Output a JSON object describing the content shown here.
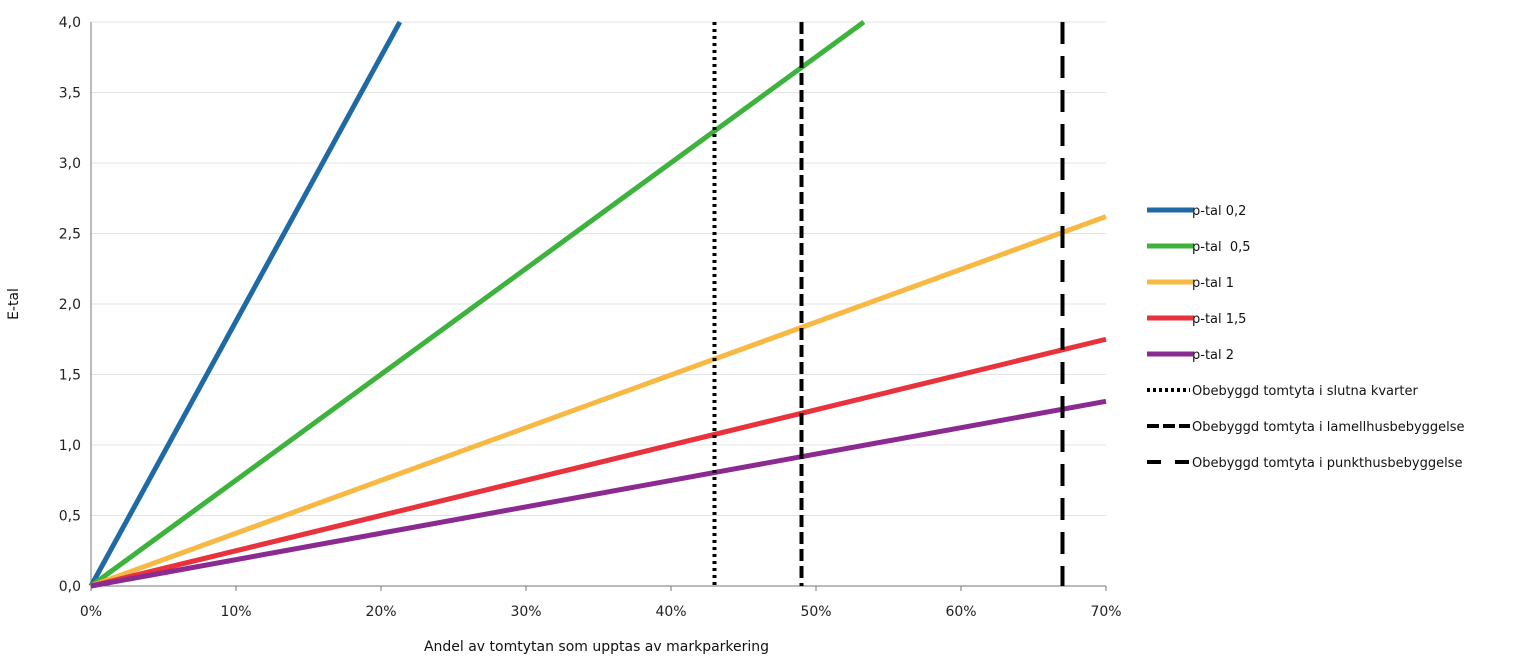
{
  "chart_data": {
    "type": "line",
    "title": "",
    "xlabel": "Andel av tomtytan som upptas av markparkering",
    "ylabel": "E-tal",
    "xlim": [
      0,
      0.7
    ],
    "ylim": [
      0,
      4.0
    ],
    "x_ticks": [
      0,
      0.1,
      0.2,
      0.3,
      0.4,
      0.5,
      0.6,
      0.7
    ],
    "x_tick_labels": [
      "0%",
      "10%",
      "20%",
      "30%",
      "40%",
      "50%",
      "60%",
      "70%"
    ],
    "y_ticks": [
      0,
      0.5,
      1.0,
      1.5,
      2.0,
      2.5,
      3.0,
      3.5,
      4.0
    ],
    "y_tick_labels": [
      "0,0",
      "0,5",
      "1,0",
      "1,5",
      "2,0",
      "2,5",
      "3,0",
      "3,5",
      "4,0"
    ],
    "grid": "horizontal",
    "legend_position": "right",
    "series": [
      {
        "name": "p-tal 0,2",
        "color": "#1f6aa5",
        "x": [
          0,
          0.213
        ],
        "y": [
          0,
          4.0
        ]
      },
      {
        "name": "p-tal  0,5",
        "color": "#3db33d",
        "x": [
          0,
          0.533
        ],
        "y": [
          0,
          4.0
        ]
      },
      {
        "name": "p-tal 1",
        "color": "#f7b844",
        "x": [
          0,
          0.7
        ],
        "y": [
          0,
          2.62
        ]
      },
      {
        "name": "p-tal 1,5",
        "color": "#e8323c",
        "x": [
          0,
          0.7
        ],
        "y": [
          0,
          1.75
        ]
      },
      {
        "name": "p-tal 2",
        "color": "#8b2a91",
        "x": [
          0,
          0.7
        ],
        "y": [
          0,
          1.31
        ]
      }
    ],
    "reference_lines": [
      {
        "name": "Obebyggd tomtyta i slutna kvarter",
        "x": 0.43,
        "style": "dotted",
        "color": "#000000"
      },
      {
        "name": "Obebyggd tomtyta i lamellhusbebyggelse",
        "x": 0.49,
        "style": "dashed",
        "color": "#000000"
      },
      {
        "name": "Obebyggd tomtyta i punkthusbebyggelse",
        "x": 0.67,
        "style": "long-dashed",
        "color": "#000000"
      }
    ]
  }
}
